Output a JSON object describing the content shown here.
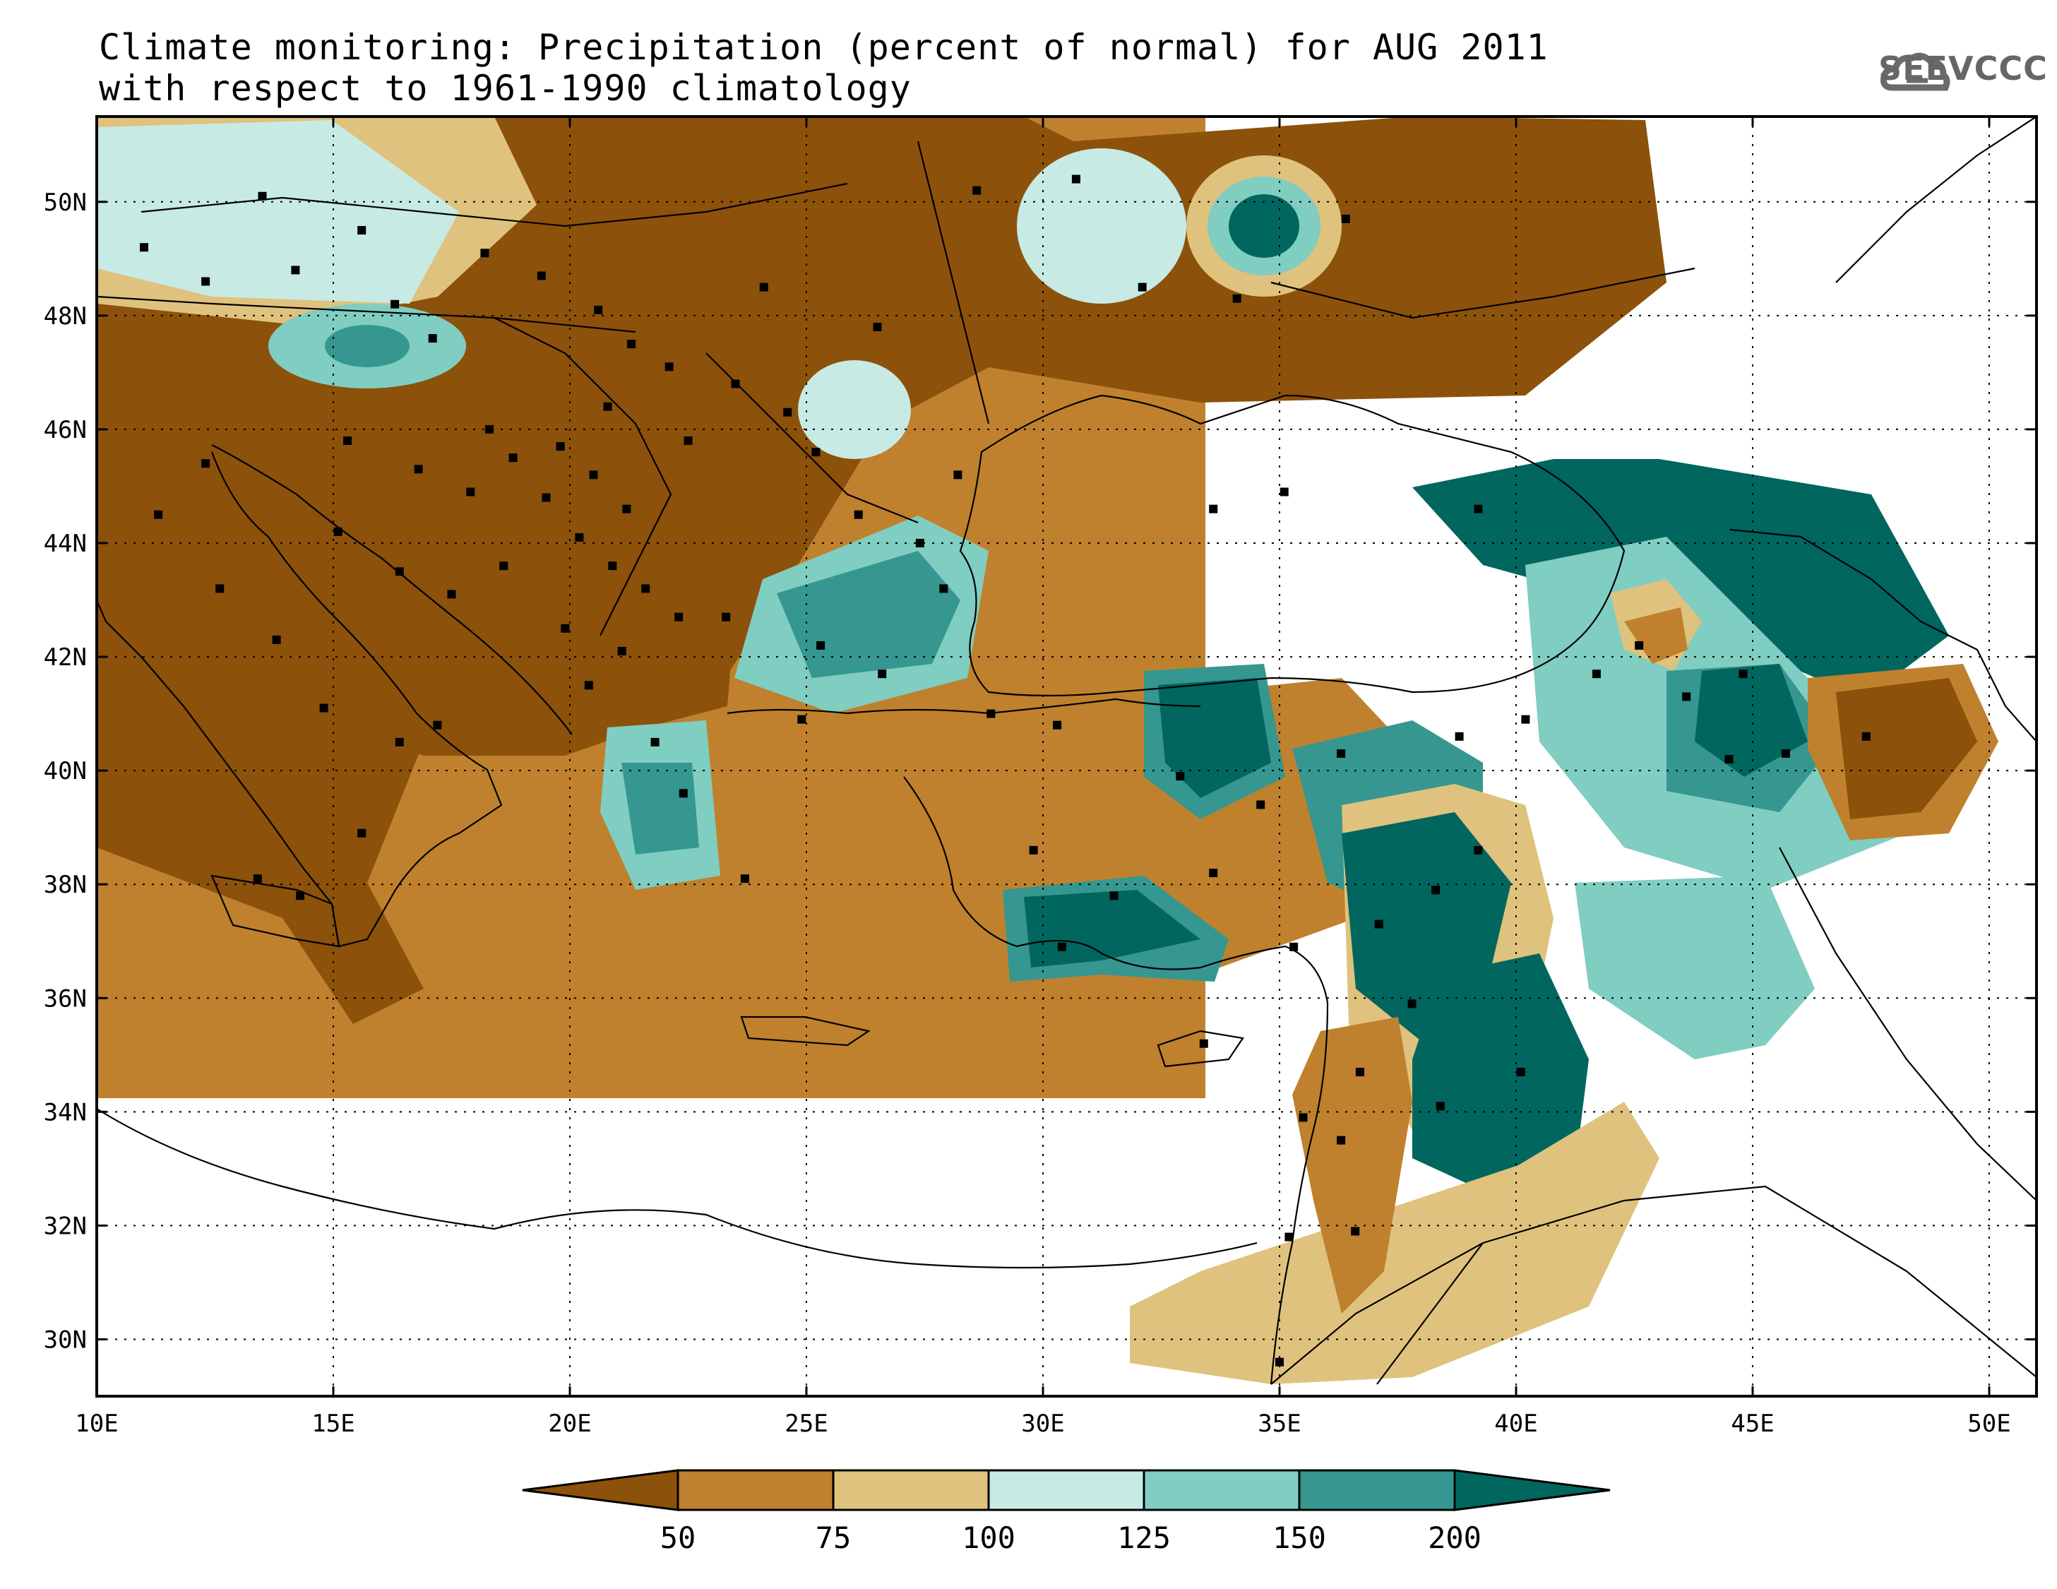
{
  "title": {
    "line1": "Climate monitoring: Precipitation (percent of normal) for AUG 2011",
    "line2": "with respect to 1961-1990 climatology"
  },
  "logo": {
    "text": "SEEVCCC",
    "icon": "cloud-icon"
  },
  "map": {
    "projection": "lat-lon",
    "lon_range": [
      10,
      51
    ],
    "lat_range": [
      29,
      51.5
    ],
    "x_ticks": [
      "10E",
      "15E",
      "20E",
      "25E",
      "30E",
      "35E",
      "40E",
      "45E",
      "50E"
    ],
    "y_ticks": [
      "30N",
      "32N",
      "34N",
      "36N",
      "38N",
      "40N",
      "42N",
      "44N",
      "46N",
      "48N",
      "50N"
    ],
    "grid": "dotted"
  },
  "colorbar": {
    "levels": [
      "50",
      "75",
      "100",
      "125",
      "150",
      "200"
    ],
    "colors": [
      "#8c510a",
      "#bf812d",
      "#dfc27d",
      "#c7eae5",
      "#80cdc1",
      "#35978f",
      "#01665e"
    ]
  }
}
